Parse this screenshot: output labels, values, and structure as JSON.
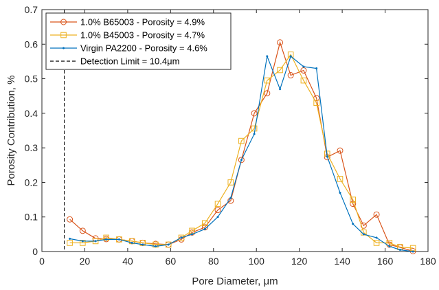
{
  "chart_data": {
    "type": "line",
    "xlabel": "Pore Diameter, μm",
    "ylabel": "Porosity Contribution, %",
    "xlim": [
      0,
      180
    ],
    "ylim": [
      0,
      0.7
    ],
    "xticks": [
      "0",
      "20",
      "40",
      "60",
      "80",
      "100",
      "120",
      "140",
      "160",
      "180"
    ],
    "yticks": [
      "0",
      "0.1",
      "0.2",
      "0.3",
      "0.4",
      "0.5",
      "0.6",
      "0.7"
    ],
    "grid": false,
    "legend_position": "top-left",
    "series": [
      {
        "name": "1.0% B65003 - Porosity = 4.9%",
        "color": "#D95319",
        "marker": "circle",
        "x": [
          13,
          19,
          25,
          30,
          36,
          42,
          47,
          53,
          59,
          65,
          70,
          76,
          82,
          88,
          93,
          99,
          105,
          111,
          116,
          122,
          128,
          133,
          139,
          145,
          150,
          156,
          162,
          167,
          173
        ],
        "y": [
          0.093,
          0.06,
          0.038,
          0.036,
          0.035,
          0.03,
          0.025,
          0.022,
          0.02,
          0.035,
          0.055,
          0.07,
          0.12,
          0.147,
          0.265,
          0.4,
          0.458,
          0.605,
          0.51,
          0.524,
          0.444,
          0.273,
          0.292,
          0.138,
          0.075,
          0.107,
          0.02,
          0.012,
          0.001
        ]
      },
      {
        "name": "1.0% B45003 - Porosity = 4.7%",
        "color": "#EDB120",
        "marker": "square",
        "x": [
          13,
          19,
          25,
          30,
          36,
          42,
          47,
          53,
          59,
          65,
          70,
          76,
          82,
          88,
          93,
          99,
          105,
          111,
          116,
          122,
          128,
          133,
          139,
          145,
          150,
          156,
          162,
          167,
          173
        ],
        "y": [
          0.025,
          0.025,
          0.03,
          0.04,
          0.035,
          0.03,
          0.025,
          0.02,
          0.02,
          0.04,
          0.06,
          0.082,
          0.138,
          0.2,
          0.32,
          0.356,
          0.495,
          0.525,
          0.57,
          0.495,
          0.43,
          0.283,
          0.21,
          0.15,
          0.055,
          0.025,
          0.025,
          0.013,
          0.01
        ]
      },
      {
        "name": "Virgin PA2200 - Porosity = 4.6%",
        "color": "#0072BD",
        "marker": "dot",
        "x": [
          13,
          19,
          25,
          30,
          36,
          42,
          47,
          53,
          59,
          65,
          70,
          76,
          82,
          88,
          93,
          99,
          105,
          111,
          116,
          122,
          128,
          133,
          139,
          145,
          150,
          156,
          162,
          167,
          173
        ],
        "y": [
          0.037,
          0.03,
          0.03,
          0.035,
          0.035,
          0.025,
          0.02,
          0.015,
          0.02,
          0.04,
          0.05,
          0.065,
          0.1,
          0.155,
          0.265,
          0.34,
          0.565,
          0.47,
          0.565,
          0.535,
          0.53,
          0.275,
          0.17,
          0.08,
          0.05,
          0.04,
          0.015,
          0.005,
          0.0
        ]
      }
    ],
    "reference_lines": [
      {
        "name": "Detection Limit = 10.4μm",
        "x": 10.4,
        "color": "#000000",
        "style": "dashed"
      }
    ]
  }
}
